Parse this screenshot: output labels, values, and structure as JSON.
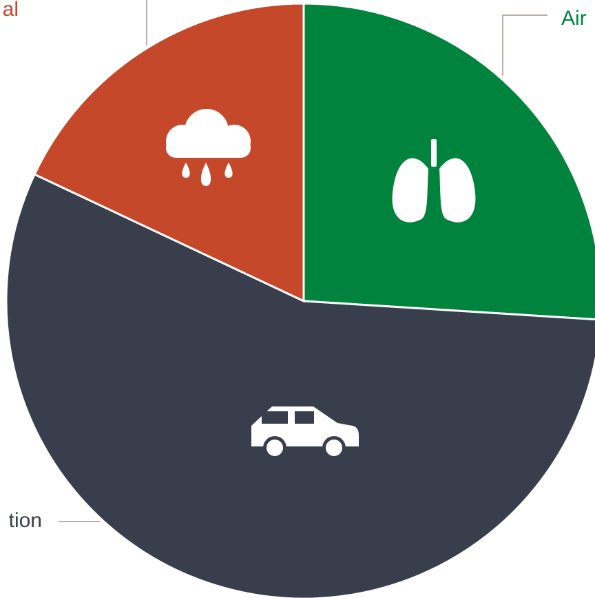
{
  "chart_data": {
    "type": "pie",
    "categories": [
      "Air",
      "tion",
      "al"
    ],
    "values": [
      26,
      56,
      18
    ],
    "colors": [
      "#00843d",
      "#383e4c",
      "#c44829"
    ]
  }
}
